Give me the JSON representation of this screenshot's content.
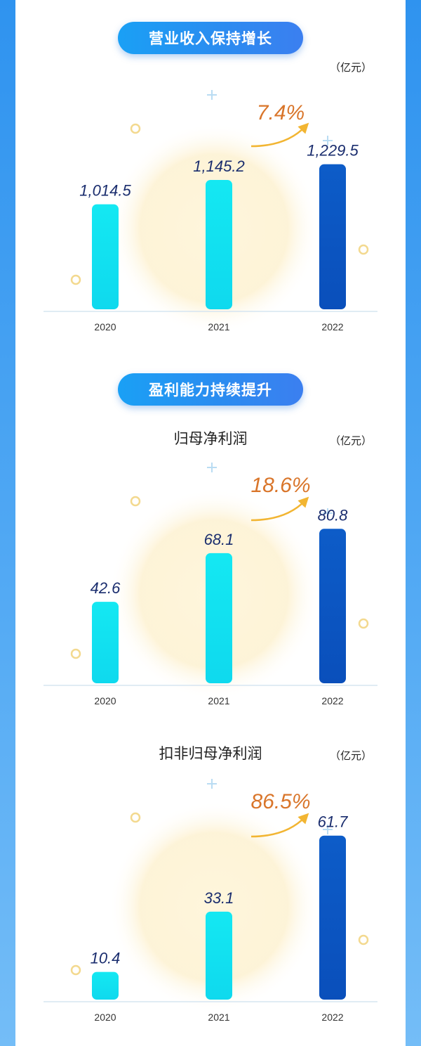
{
  "sections": [
    {
      "title": "营业收入保持增长"
    },
    {
      "title": "盈利能力持续提升"
    }
  ],
  "colors": {
    "bar_light": "#12e3f0",
    "bar_dark": "#0d58c6",
    "value_text": "#1a2d6e",
    "growth_text": "#d9752a",
    "arrow": "#f2b532"
  },
  "chart_data": [
    {
      "type": "bar",
      "title": "",
      "unit": "（亿元）",
      "categories": [
        "2020",
        "2021",
        "2022"
      ],
      "values": [
        1014.5,
        1145.2,
        1229.5
      ],
      "value_labels": [
        "1,014.5",
        "1,145.2",
        "1,229.5"
      ],
      "growth_label": "7.4%",
      "ylim": [
        450,
        1300
      ]
    },
    {
      "type": "bar",
      "title": "归母净利润",
      "unit": "（亿元）",
      "categories": [
        "2020",
        "2021",
        "2022"
      ],
      "values": [
        42.6,
        68.1,
        80.8
      ],
      "value_labels": [
        "42.6",
        "68.1",
        "80.8"
      ],
      "growth_label": "18.6%",
      "ylim": [
        0,
        89
      ]
    },
    {
      "type": "bar",
      "title": "扣非归母净利润",
      "unit": "（亿元）",
      "categories": [
        "2020",
        "2021",
        "2022"
      ],
      "values": [
        10.4,
        33.1,
        61.7
      ],
      "value_labels": [
        "10.4",
        "33.1",
        "61.7"
      ],
      "growth_label": "86.5%",
      "ylim": [
        0,
        64
      ]
    }
  ]
}
